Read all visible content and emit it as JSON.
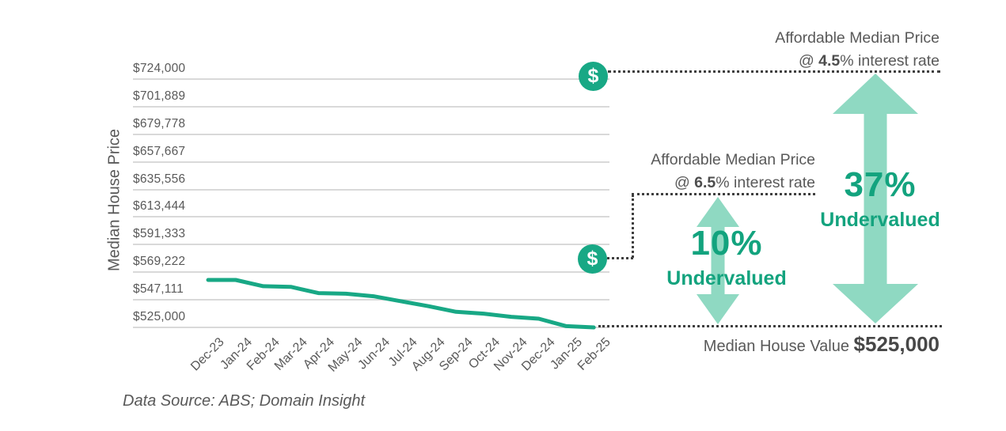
{
  "colors": {
    "accent": "#18A885",
    "arrow_fill": "#8FD9C2",
    "green_text": "#13A37E",
    "gray_text": "#595959",
    "gridline": "#D9D9D9",
    "dotted": "#3F3F3F"
  },
  "icons": {
    "dollar": "$"
  },
  "chart_data": {
    "type": "line",
    "ylabel": "Median House Price",
    "x": [
      "Dec-23",
      "Jan-24",
      "Feb-24",
      "Mar-24",
      "Apr-24",
      "May-24",
      "Jun-24",
      "Jul-24",
      "Aug-24",
      "Sep-24",
      "Oct-24",
      "Nov-24",
      "Dec-24",
      "Jan-25",
      "Feb-25"
    ],
    "series": [
      {
        "name": "Median House Price",
        "color": "#18A885",
        "values": [
          563000,
          563000,
          558000,
          557500,
          552500,
          552000,
          550000,
          546000,
          542000,
          537500,
          536000,
          533500,
          532000,
          526000,
          525000
        ]
      }
    ],
    "y_ticks": [
      {
        "label": "$724,000",
        "value": 724000
      },
      {
        "label": "$701,889",
        "value": 701889
      },
      {
        "label": "$679,778",
        "value": 679778
      },
      {
        "label": "$657,667",
        "value": 657667
      },
      {
        "label": "$635,556",
        "value": 635556
      },
      {
        "label": "$613,444",
        "value": 613444
      },
      {
        "label": "$591,333",
        "value": 591333
      },
      {
        "label": "$569,222",
        "value": 569222
      },
      {
        "label": "$547,111",
        "value": 547111
      },
      {
        "label": "$525,000",
        "value": 525000
      }
    ],
    "ylim": [
      525000,
      724000
    ],
    "grid": true,
    "legend": "none"
  },
  "annotations": {
    "affordable_45": {
      "line1": "Affordable Median Price",
      "at": "@ ",
      "rate_bold": "4.5",
      "rest": "% interest rate"
    },
    "affordable_65": {
      "line1": "Affordable Median Price",
      "at": "@ ",
      "rate_bold": "6.5",
      "rest": "% interest rate"
    },
    "undervalued_37": {
      "percent": "37%",
      "label": "Undervalued"
    },
    "undervalued_10": {
      "percent": "10%",
      "label": "Undervalued"
    },
    "median_house_value": {
      "label": "Median House Value ",
      "value": "$525,000"
    }
  },
  "footer": {
    "source": "Data Source: ABS; Domain Insight"
  }
}
